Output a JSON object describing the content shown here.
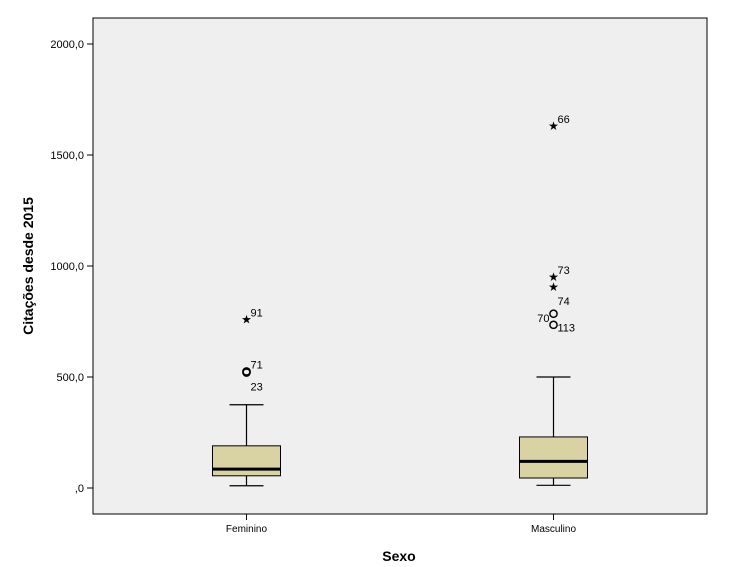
{
  "chart_data": {
    "type": "boxplot",
    "xlabel": "Sexo",
    "ylabel": "Citações desde 2015",
    "ylim": [
      -100,
      2130
    ],
    "yticks": [
      {
        "value": 0,
        "label": ",0"
      },
      {
        "value": 500,
        "label": "500,0"
      },
      {
        "value": 1000,
        "label": "1000,0"
      },
      {
        "value": 1500,
        "label": "1500,0"
      },
      {
        "value": 2000,
        "label": "2000,0"
      }
    ],
    "grid": false,
    "colors": {
      "plot_background": "#efefef",
      "box_fill": "#d9d3a3",
      "stroke": "#000000"
    },
    "categories": [
      "Feminino",
      "Masculino"
    ],
    "boxes": [
      {
        "category": "Feminino",
        "whisker_low": 10,
        "q1": 55,
        "median": 85,
        "q3": 190,
        "whisker_high": 375,
        "outliers": [
          {
            "id": "91",
            "value": 760,
            "kind": "extreme"
          },
          {
            "id": "71",
            "value": 525,
            "kind": "outlier"
          },
          {
            "id": "23",
            "value": 520,
            "kind": "outlier"
          }
        ]
      },
      {
        "category": "Masculino",
        "whisker_low": 12,
        "q1": 45,
        "median": 120,
        "q3": 230,
        "whisker_high": 500,
        "outliers": [
          {
            "id": "66",
            "value": 1630,
            "kind": "extreme"
          },
          {
            "id": "73",
            "value": 950,
            "kind": "extreme"
          },
          {
            "id": "74",
            "value": 905,
            "kind": "extreme"
          },
          {
            "id": "113",
            "value": 785,
            "kind": "outlier"
          },
          {
            "id": "70",
            "value": 735,
            "kind": "outlier"
          }
        ]
      }
    ]
  }
}
